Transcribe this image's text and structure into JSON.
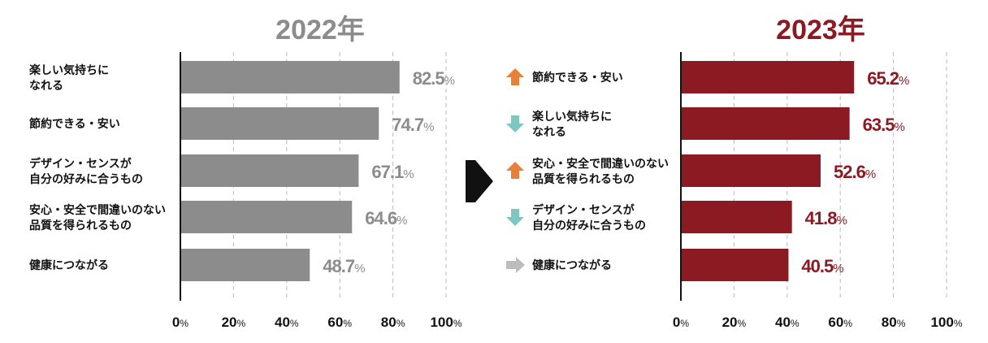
{
  "chart_data": [
    {
      "type": "bar",
      "orientation": "horizontal",
      "title": "2022年",
      "categories": [
        "楽しい気持ちに\nなれる",
        "節約できる・安い",
        "デザイン・センスが\n自分の好みに合うもの",
        "安心・安全で間違いのない\n品質を得られるもの",
        "健康につながる"
      ],
      "values": [
        82.5,
        74.7,
        67.1,
        64.6,
        48.7
      ],
      "value_suffix": "%",
      "xlim": [
        0,
        100
      ],
      "xticks": [
        0,
        20,
        40,
        60,
        80,
        100
      ],
      "tick_suffix": "%",
      "grid": true,
      "color": "#8c8c8c",
      "title_color": "#8c8c8c"
    },
    {
      "type": "bar",
      "orientation": "horizontal",
      "title": "2023年",
      "categories": [
        "節約できる・安い",
        "楽しい気持ちに\nなれる",
        "安心・安全で間違いのない\n品質を得られるもの",
        "デザイン・センスが\n自分の好みに合うもの",
        "健康につながる"
      ],
      "values": [
        65.2,
        63.5,
        52.6,
        41.8,
        40.5
      ],
      "trends": [
        "up",
        "down",
        "up",
        "down",
        "flat"
      ],
      "value_suffix": "%",
      "xlim": [
        0,
        100
      ],
      "xticks": [
        0,
        20,
        40,
        60,
        80,
        100
      ],
      "tick_suffix": "%",
      "grid": true,
      "color": "#8b1a22",
      "title_color": "#8b1a22"
    }
  ],
  "trend_colors": {
    "up": "#e8803a",
    "down": "#7cc8c0",
    "flat": "#bdbdbd"
  },
  "arrow_icon": "chevron-right-icon"
}
